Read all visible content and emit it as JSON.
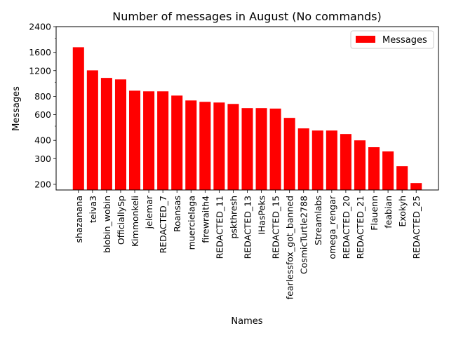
{
  "chart_data": {
    "type": "bar",
    "title": "Number of messages in August (No commands)",
    "xlabel": "Names",
    "ylabel": "Messages",
    "yscale": "log",
    "ylim": [
      183,
      2400
    ],
    "yticks": [
      200,
      300,
      400,
      600,
      800,
      1200,
      1600,
      2400
    ],
    "yticks_minor": [
      500,
      1000,
      2000
    ],
    "grid": false,
    "legend": {
      "placement": "top-right",
      "entries": [
        "Messages"
      ]
    },
    "bar_color": "#ff0000",
    "categories": [
      "shazanana",
      "teiva3",
      "blobin_wobin",
      "OfficiallySp",
      "Kimmonkeli",
      "jelemar",
      "REDACTED_7",
      "Roansas",
      "muercielaga",
      "firewraith4",
      "REDACTED_11",
      "pskthresh",
      "REDACTED_13",
      "IHasPeks",
      "REDACTED_15",
      "fearlessfox_got_banned",
      "CosmicTurtle2788",
      "Streamlabs",
      "omega_rengar",
      "REDACTED_20",
      "REDACTED_21",
      "Flauenn",
      "feabian",
      "Exokyh",
      "REDACTED_25"
    ],
    "series": [
      {
        "name": "Messages",
        "values": [
          1735,
          1205,
          1070,
          1045,
          875,
          866,
          866,
          810,
          750,
          734,
          726,
          710,
          665,
          665,
          660,
          570,
          483,
          467,
          467,
          442,
          400,
          359,
          336,
          266,
          204
        ]
      }
    ]
  }
}
